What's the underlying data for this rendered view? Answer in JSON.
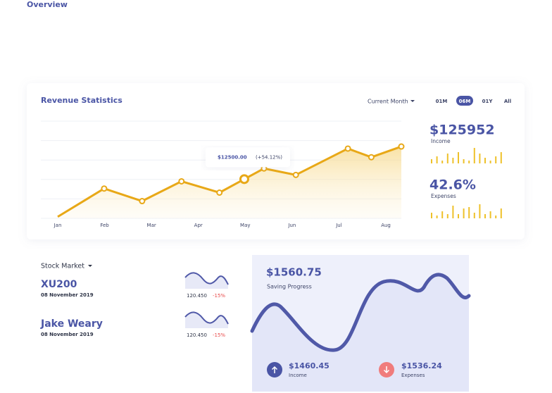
{
  "header": {
    "title": "Overview"
  },
  "chart_data": {
    "type": "line",
    "title": "Revenue Statistics",
    "period_select": "Current Month",
    "ranges": [
      "01M",
      "06M",
      "01Y",
      "All"
    ],
    "active_range": "06M",
    "x": [
      0,
      0.99,
      1.8,
      2.64,
      3.45,
      3.98,
      4.4,
      5.08,
      6.19,
      6.69,
      7.33
    ],
    "values": [
      500,
      9500,
      5500,
      11800,
      8200,
      12500,
      15900,
      13850,
      22250,
      19500,
      22900
    ],
    "color": "#e8a817",
    "xlim": [
      0,
      7.33
    ],
    "ylim": [
      0,
      31000
    ],
    "xticks": [
      {
        "value": 0,
        "label": "Jan"
      },
      {
        "value": 1,
        "label": "Feb"
      },
      {
        "value": 2,
        "label": "Mar"
      },
      {
        "value": 3,
        "label": "Apr"
      },
      {
        "value": 4,
        "label": "May"
      },
      {
        "value": 5,
        "label": "Jun"
      },
      {
        "value": 6,
        "label": "Jul"
      },
      {
        "value": 7,
        "label": "Aug"
      }
    ],
    "grid": true,
    "tooltip": {
      "index": 5,
      "value_label": "$12500.00",
      "change": "(+54.12%)"
    }
  },
  "revenue_summary": {
    "income": {
      "value": "$125952",
      "label": "Income",
      "bars": [
        6,
        10,
        4,
        14,
        8,
        16,
        6,
        4,
        22,
        14,
        8,
        4,
        10,
        16
      ]
    },
    "expenses": {
      "value": "42.6%",
      "label": "Expenses",
      "bars": [
        8,
        4,
        10,
        6,
        18,
        6,
        14,
        16,
        8,
        20,
        6,
        10,
        4,
        14
      ]
    }
  },
  "stock_market": {
    "title": "Stock Market",
    "items": [
      {
        "name": "XU200",
        "date": "08 November 2019",
        "price": "120.450",
        "change": "-15%"
      },
      {
        "name": "Jake Weary",
        "date": "08 November 2019",
        "price": "120.450",
        "change": "-15%"
      }
    ]
  },
  "saving": {
    "value": "$1560.75",
    "label": "Saving Progress",
    "income": {
      "value": "$1460.45",
      "label": "Income"
    },
    "expenses": {
      "value": "$1536.24",
      "label": "Expenses"
    }
  }
}
